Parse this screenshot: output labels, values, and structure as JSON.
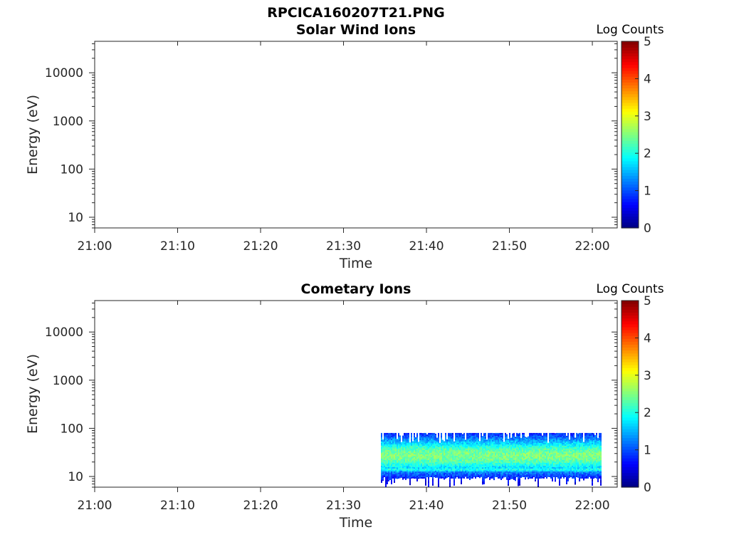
{
  "figure_title": "RPCICA160207T21.PNG",
  "chart_data": [
    {
      "type": "heatmap",
      "title": "Solar Wind Ions",
      "xlabel": "Time",
      "ylabel": "Energy (eV)",
      "x_range": [
        "21:00",
        "22:03"
      ],
      "x_ticks": [
        "21:00",
        "21:10",
        "21:20",
        "21:30",
        "21:40",
        "21:50",
        "22:00"
      ],
      "y_scale": "log",
      "y_range": [
        6,
        45000
      ],
      "y_ticks": [
        "10",
        "100",
        "1000",
        "10000"
      ],
      "colorbar": {
        "label": "Log Counts",
        "ticks": [
          "0",
          "1",
          "2",
          "3",
          "4",
          "5"
        ],
        "range": [
          0,
          5
        ],
        "colormap": "jet"
      },
      "data": {
        "time_start": null,
        "time_end": null,
        "energy_min": null,
        "energy_max": null,
        "peak_energy": null,
        "peak_log_counts": null
      }
    },
    {
      "type": "heatmap",
      "title": "Cometary Ions",
      "xlabel": "Time",
      "ylabel": "Energy (eV)",
      "x_range": [
        "21:00",
        "22:03"
      ],
      "x_ticks": [
        "21:00",
        "21:10",
        "21:20",
        "21:30",
        "21:40",
        "21:50",
        "22:00"
      ],
      "y_scale": "log",
      "y_range": [
        6,
        45000
      ],
      "y_ticks": [
        "10",
        "100",
        "1000",
        "10000"
      ],
      "colorbar": {
        "label": "Log Counts",
        "ticks": [
          "0",
          "1",
          "2",
          "3",
          "4",
          "5"
        ],
        "range": [
          0,
          5
        ],
        "colormap": "jet"
      },
      "data": {
        "time_start": "21:34.5",
        "time_end": "22:01",
        "energy_min": 10,
        "energy_max": 80,
        "peak_energy": 28,
        "peak_log_counts": 2.2
      }
    }
  ],
  "colors": {
    "axis": "#262626",
    "background": "#ffffff"
  }
}
